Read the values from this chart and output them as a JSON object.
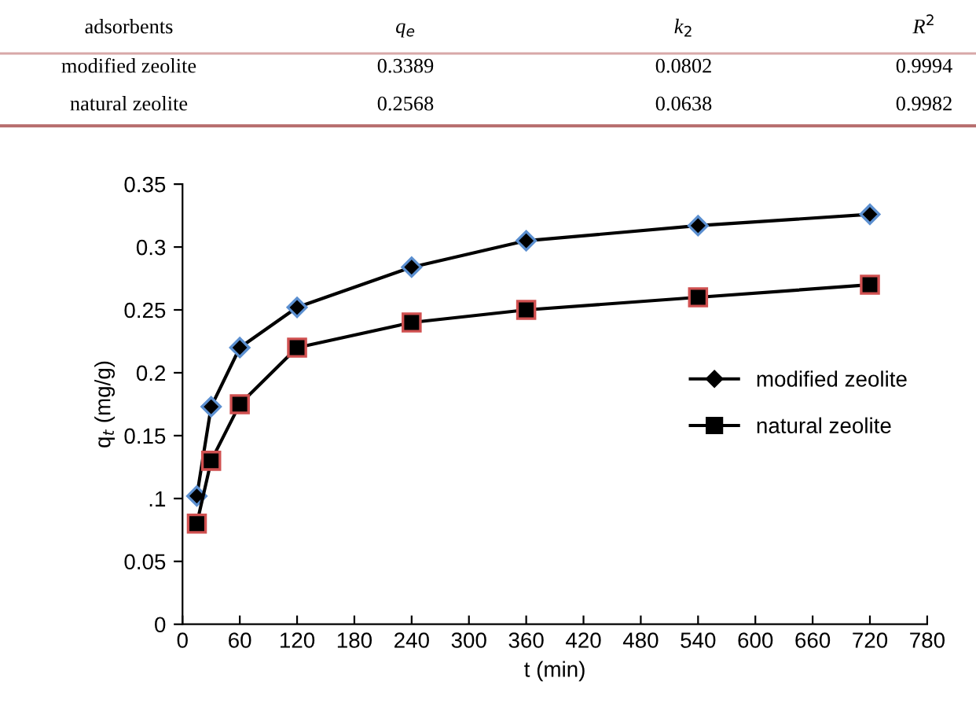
{
  "chart_data": [
    {
      "type": "other",
      "categories": [
        "adsorbents",
        "q$_{e}$",
        "k$_{2}$",
        "R$^{2}$"
      ],
      "y_categories": [
        "modified zeolite",
        "natural zeolite"
      ],
      "cell_labels": [
        [
          "0.3389",
          "0.0802",
          "0.9994"
        ],
        [
          "0.2568",
          "0.0638",
          "0.9982"
        ]
      ]
    },
    {
      "type": "line",
      "xlabel": "t (min)",
      "ylabel": "q$_{t}$ (mg/g)",
      "xlim": [
        0,
        780
      ],
      "xticks": [
        0,
        60,
        120,
        180,
        240,
        300,
        360,
        420,
        480,
        540,
        600,
        660,
        720,
        780
      ],
      "ylim": [
        0,
        0.35
      ],
      "yticks": [
        0,
        0.05,
        {
          "value": 0.1,
          "label": ".1"
        },
        0.15,
        0.2,
        0.25,
        0.3,
        0.35
      ],
      "grid": false,
      "legend": "right",
      "series": [
        {
          "name": "modified zeolite",
          "color": "#000000",
          "marker": "diamond",
          "x": [
            15,
            30,
            60,
            120,
            240,
            360,
            540,
            720
          ],
          "values": [
            0.102,
            0.173,
            0.22,
            0.252,
            0.284,
            0.305,
            0.317,
            0.326
          ]
        },
        {
          "name": "natural zeolite",
          "color": "#000000",
          "marker": "square",
          "x": [
            15,
            30,
            60,
            120,
            240,
            360,
            540,
            720
          ],
          "values": [
            0.08,
            0.13,
            0.175,
            0.22,
            0.24,
            0.25,
            0.26,
            0.27
          ]
        }
      ]
    }
  ]
}
